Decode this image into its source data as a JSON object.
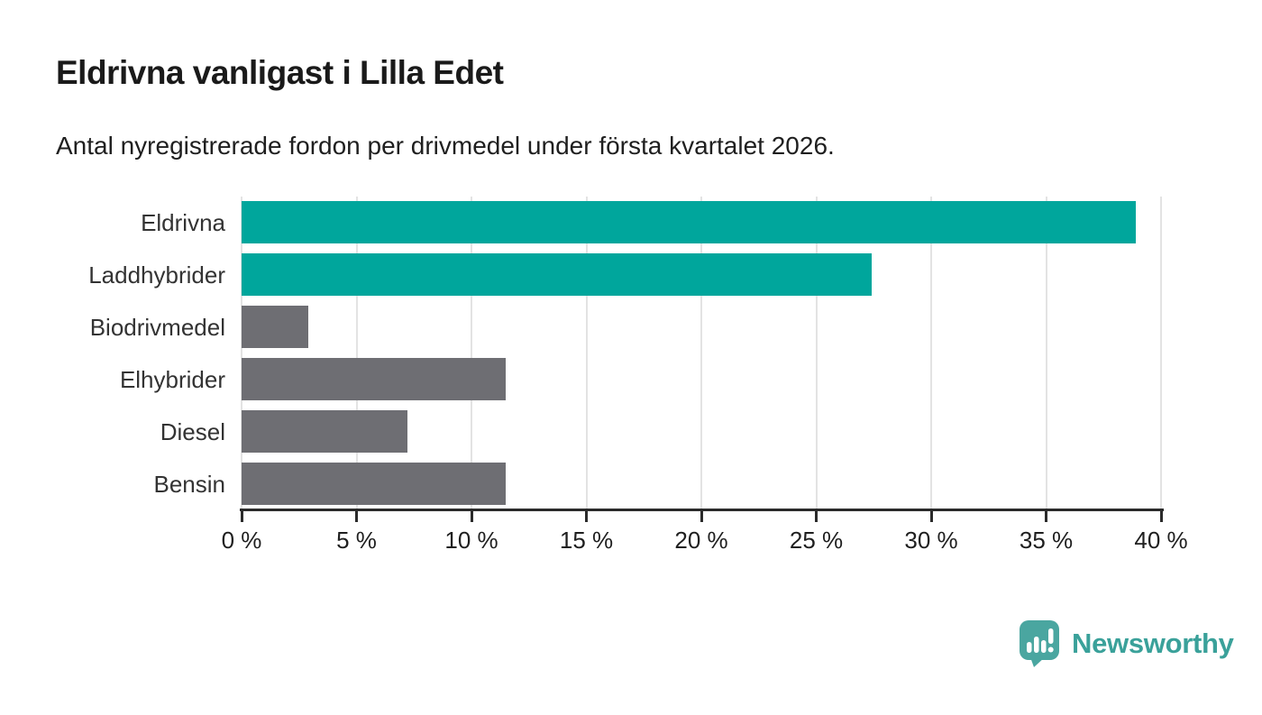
{
  "chart_data": {
    "type": "bar",
    "orientation": "horizontal",
    "title": "Eldrivna vanligast i Lilla Edet",
    "subtitle": "Antal nyregistrerade fordon per drivmedel under första kvartalet 2026.",
    "categories": [
      "Eldrivna",
      "Laddhybrider",
      "Biodrivmedel",
      "Elhybrider",
      "Diesel",
      "Bensin"
    ],
    "values": [
      38.9,
      27.4,
      2.9,
      11.5,
      7.2,
      11.5
    ],
    "unit": "%",
    "bar_colors": [
      "#00a69c",
      "#00a69c",
      "#6e6e73",
      "#6e6e73",
      "#6e6e73",
      "#6e6e73"
    ],
    "highlight_color": "#00a69c",
    "default_color": "#6e6e73",
    "xlim": [
      0,
      40
    ],
    "x_ticks": [
      0,
      5,
      10,
      15,
      20,
      25,
      30,
      35,
      40
    ],
    "x_tick_labels": [
      "0 %",
      "5 %",
      "10 %",
      "15 %",
      "20 %",
      "25 %",
      "30 %",
      "35 %",
      "40 %"
    ],
    "grid": "vertical-only",
    "legend": "none",
    "gridline_color": "#e3e3e3",
    "axis_color": "#2b2b2b"
  },
  "footer": {
    "brand": "Newsworthy",
    "logo_icon": "newsworthy-speech-bubble-chart-icon",
    "brand_color": "#3aa19a",
    "icon_color": "#4aa6a0"
  }
}
